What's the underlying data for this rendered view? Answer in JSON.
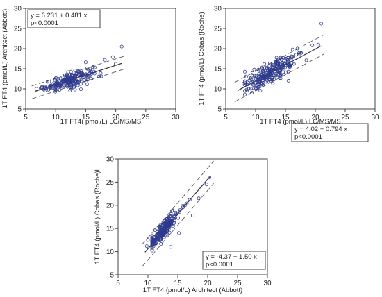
{
  "colors": {
    "points": "#2e3a8c",
    "fit_line": "#2a2a2a",
    "ci_line": "#555555",
    "frame": "#444444",
    "background": "#ffffff"
  },
  "chart_data": [
    {
      "type": "scatter",
      "title": "",
      "xlabel": "1T FT4( pmol/L) LC/MS/MS",
      "ylabel": "1T FT4 (pmol/L) Architect (Abbott)",
      "xlim": [
        5,
        30
      ],
      "ylim": [
        5,
        30
      ],
      "xticks": [
        "5",
        "10",
        "15",
        "20",
        "25",
        "30"
      ],
      "yticks": [
        "5",
        "10",
        "15",
        "20",
        "25",
        "30"
      ],
      "regression": {
        "intercept": 6.231,
        "slope": 0.481,
        "x_range": [
          6.5,
          21
        ],
        "ci_offset": 1.6
      },
      "annotation": {
        "equation": "y = 6.231  +  0.481  x",
        "pvalue": "p<0.0001",
        "position": "top-left"
      },
      "point_cloud": {
        "x_center": 12.3,
        "x_sd": 2.0,
        "residual_sd": 0.9,
        "count": 210
      },
      "points": [
        [
          6.8,
          10.0
        ],
        [
          7.5,
          10.1
        ],
        [
          8.2,
          10.5
        ],
        [
          19.5,
          17.9
        ],
        [
          20.0,
          16.2
        ],
        [
          21.0,
          20.5
        ],
        [
          18.2,
          17.2
        ],
        [
          17.6,
          13.1
        ],
        [
          15.0,
          16.6
        ],
        [
          14.2,
          9.9
        ]
      ]
    },
    {
      "type": "scatter",
      "title": "",
      "xlabel": "1T FT4 (pmol/L) LC/MS/MS",
      "ylabel": "1T FT4 (pmol/L) Cobas (Roche)",
      "xlim": [
        5,
        30
      ],
      "ylim": [
        5,
        30
      ],
      "xticks": [
        "5",
        "10",
        "15",
        "20",
        "25",
        "30"
      ],
      "yticks": [
        "5",
        "10",
        "15",
        "20",
        "25",
        "30"
      ],
      "regression": {
        "intercept": 4.02,
        "slope": 0.794,
        "x_range": [
          7,
          21
        ],
        "ci_offset": 2.4
      },
      "annotation": {
        "equation": "y = 4.02  +  0.794  x",
        "pvalue": "p<0.0001",
        "position": "bottom-right"
      },
      "point_cloud": {
        "x_center": 12.6,
        "x_sd": 2.1,
        "residual_sd": 1.3,
        "count": 240
      },
      "points": [
        [
          21.0,
          26.2
        ],
        [
          20.5,
          21.0
        ],
        [
          19.5,
          20.8
        ],
        [
          18.5,
          17.1
        ],
        [
          17.0,
          20.0
        ],
        [
          16.2,
          19.8
        ],
        [
          8.0,
          11.3
        ],
        [
          8.5,
          9.8
        ],
        [
          15.5,
          12.0
        ]
      ]
    },
    {
      "type": "scatter",
      "title": "",
      "xlabel": "1T FT4 (pmol/L) Architect (Abbott)",
      "ylabel": "1T FT4 (pmol/L) Cobas (Roche)l",
      "xlim": [
        5,
        30
      ],
      "ylim": [
        5,
        30
      ],
      "xticks": [
        "5",
        "10",
        "15",
        "20",
        "25",
        "30"
      ],
      "yticks": [
        "5",
        "10",
        "15",
        "20",
        "25",
        "30"
      ],
      "regression": {
        "intercept": -4.37,
        "slope": 1.5,
        "x_range": [
          9.5,
          20.5
        ],
        "ci_offset": 2.4
      },
      "annotation": {
        "equation": "y = -4.37  +  1.50  x",
        "pvalue": "p<0.0001",
        "position": "bottom-right"
      },
      "point_cloud": {
        "x_center": 12.4,
        "x_sd": 1.3,
        "residual_sd": 0.9,
        "count": 230
      },
      "points": [
        [
          20.3,
          26.0
        ],
        [
          19.8,
          24.5
        ],
        [
          17.0,
          21.2
        ],
        [
          16.5,
          20.4
        ],
        [
          15.2,
          14.0
        ],
        [
          13.8,
          11.0
        ],
        [
          10.0,
          12.5
        ],
        [
          9.8,
          11.2
        ],
        [
          18.5,
          21.5
        ],
        [
          17.5,
          17.8
        ]
      ]
    }
  ]
}
